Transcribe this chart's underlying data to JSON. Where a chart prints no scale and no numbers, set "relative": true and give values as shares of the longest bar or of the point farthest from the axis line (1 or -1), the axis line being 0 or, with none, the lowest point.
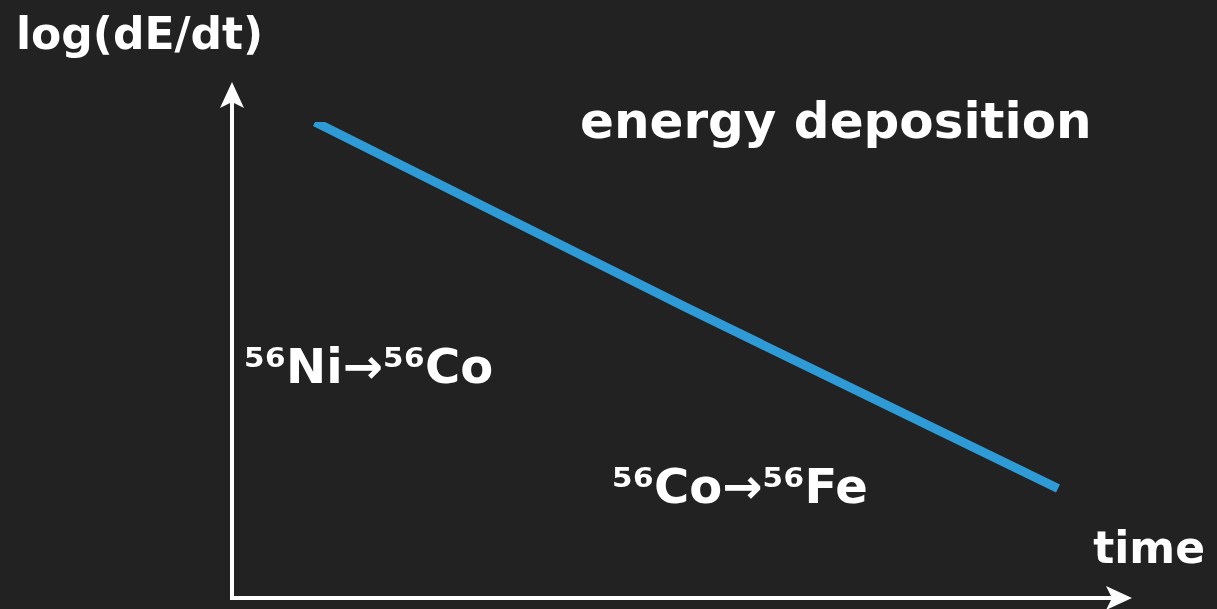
{
  "chart_data": {
    "type": "line",
    "relative": true,
    "xlabel": "time",
    "ylabel": "log(dE/dt)",
    "categories": [
      null,
      null,
      null
    ],
    "series": [
      {
        "color": "#2e9bd6",
        "values": [
          1,
          0.61,
          0.23
        ]
      }
    ],
    "annotations": [
      "energy deposition",
      "⁵⁶Ni→⁵⁶Co",
      "⁵⁶Co→⁵⁶Fe"
    ],
    "legend": false,
    "marker": "none"
  }
}
